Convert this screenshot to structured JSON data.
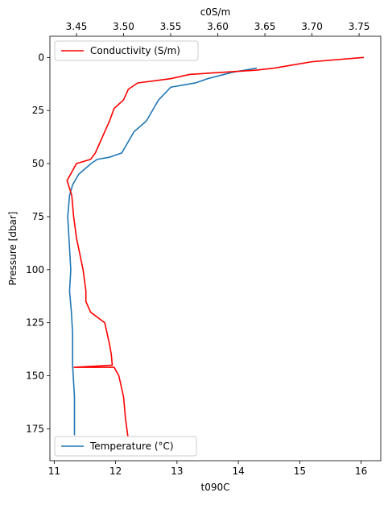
{
  "chart_data": {
    "type": "line",
    "xlabel": "t090C",
    "x2label": "c0S/m",
    "ylabel": "Pressure [dbar]",
    "xlim": [
      10.93,
      16.32
    ],
    "xticks": [
      11,
      12,
      13,
      14,
      15,
      16
    ],
    "x2lim": [
      3.4218,
      3.773
    ],
    "x2ticks": [
      3.45,
      {
        "value": 3.5,
        "label": "3.50"
      },
      3.55,
      {
        "value": 3.6,
        "label": "3.60"
      },
      3.65,
      {
        "value": 3.7,
        "label": "3.70"
      },
      3.75
    ],
    "ylim": [
      190,
      -10
    ],
    "yticks": [
      0,
      25,
      50,
      75,
      100,
      125,
      150,
      175
    ],
    "series": [
      {
        "name": "Conductivity (S/m)",
        "color": "#ff0000",
        "axis": "x2",
        "legend": "upper left",
        "x": [
          3.755,
          3.7,
          3.66,
          3.64,
          3.57,
          3.55,
          3.515,
          3.505,
          3.5,
          3.49,
          3.485,
          3.48,
          3.475,
          3.47,
          3.465,
          3.45,
          3.44,
          3.445,
          3.447,
          3.45,
          3.457,
          3.46,
          3.46,
          3.465,
          3.48,
          3.485,
          3.487,
          3.488,
          3.447,
          3.49,
          3.495,
          3.5,
          3.502,
          3.505
        ],
        "y": [
          0,
          2,
          5,
          6,
          8,
          10,
          12,
          15,
          20,
          24,
          30,
          35,
          40,
          45,
          48,
          50,
          58,
          65,
          75,
          85,
          100,
          110,
          115,
          120,
          125,
          135,
          140,
          145,
          146,
          146,
          150,
          160,
          170,
          180
        ]
      },
      {
        "name": "Temperature (°C)",
        "color": "#1f77b4",
        "axis": "x",
        "legend": "lower left",
        "x": [
          14.3,
          13.9,
          13.5,
          13.3,
          12.9,
          12.8,
          12.7,
          12.6,
          12.5,
          12.3,
          12.2,
          12.1,
          11.9,
          11.7,
          11.6,
          11.4,
          11.3,
          11.25,
          11.22,
          11.25,
          11.27,
          11.25,
          11.28,
          11.3,
          11.3,
          11.33,
          11.33
        ],
        "y": [
          5,
          7,
          10,
          12,
          14,
          17,
          20,
          25,
          30,
          35,
          40,
          45,
          47,
          48,
          50,
          55,
          60,
          65,
          75,
          90,
          100,
          110,
          120,
          130,
          145,
          160,
          178
        ]
      }
    ]
  }
}
